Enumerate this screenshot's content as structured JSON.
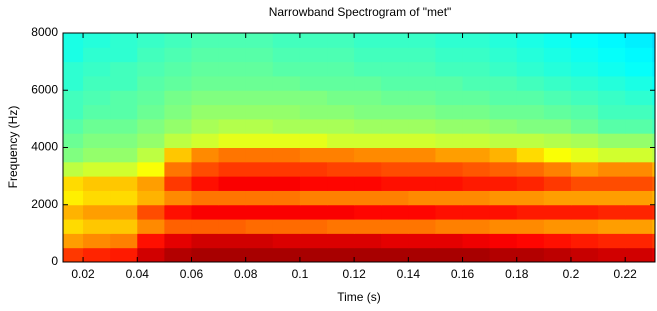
{
  "chart_data": {
    "type": "heatmap",
    "title": "Narrowband Spectrogram of \"met\"",
    "xlabel": "Time (s)",
    "ylabel": "Frequency (Hz)",
    "colormap": "jet",
    "zlim": [
      0,
      100
    ],
    "xbins": [
      0.0126,
      0.02,
      0.03,
      0.04,
      0.05,
      0.06,
      0.07,
      0.08,
      0.09,
      0.1,
      0.11,
      0.12,
      0.13,
      0.14,
      0.15,
      0.16,
      0.17,
      0.18,
      0.19,
      0.2,
      0.21,
      0.22,
      0.23,
      0.231
    ],
    "ybins": [
      0,
      500,
      1000,
      1500,
      2000,
      2500,
      3000,
      3500,
      4000,
      4500,
      5000,
      5500,
      6000,
      6500,
      7000,
      7500,
      8000
    ],
    "z": [
      [
        82,
        84,
        85,
        92,
        95,
        96,
        96,
        96,
        96,
        96,
        96,
        96,
        96,
        96,
        96,
        96,
        95,
        95,
        94,
        93,
        92,
        92,
        90
      ],
      [
        72,
        74,
        75,
        86,
        90,
        92,
        92,
        92,
        91,
        91,
        91,
        91,
        90,
        90,
        90,
        89,
        88,
        87,
        86,
        85,
        84,
        84,
        82
      ],
      [
        66,
        68,
        68,
        74,
        78,
        78,
        78,
        77,
        77,
        77,
        76,
        76,
        76,
        76,
        75,
        75,
        74,
        74,
        73,
        73,
        72,
        72,
        70
      ],
      [
        70,
        72,
        72,
        80,
        86,
        88,
        88,
        88,
        88,
        88,
        88,
        87,
        87,
        87,
        86,
        86,
        86,
        85,
        85,
        85,
        84,
        84,
        83
      ],
      [
        64,
        66,
        66,
        70,
        74,
        76,
        76,
        76,
        76,
        75,
        75,
        75,
        75,
        74,
        74,
        74,
        73,
        73,
        72,
        72,
        72,
        72,
        70
      ],
      [
        66,
        68,
        68,
        72,
        82,
        86,
        88,
        88,
        88,
        87,
        87,
        87,
        86,
        86,
        86,
        85,
        85,
        84,
        82,
        80,
        80,
        80,
        78
      ],
      [
        56,
        58,
        58,
        62,
        76,
        80,
        82,
        82,
        82,
        82,
        81,
        81,
        80,
        80,
        80,
        79,
        78,
        77,
        75,
        72,
        74,
        74,
        70
      ],
      [
        50,
        52,
        52,
        56,
        68,
        74,
        76,
        76,
        76,
        75,
        75,
        74,
        74,
        74,
        72,
        72,
        70,
        66,
        62,
        60,
        58,
        58,
        56
      ],
      [
        48,
        50,
        50,
        52,
        56,
        58,
        60,
        60,
        60,
        60,
        58,
        58,
        58,
        58,
        57,
        57,
        56,
        56,
        55,
        54,
        52,
        52,
        50
      ],
      [
        46,
        48,
        48,
        50,
        52,
        54,
        55,
        55,
        54,
        54,
        54,
        53,
        53,
        53,
        52,
        52,
        51,
        50,
        50,
        48,
        46,
        46,
        44
      ],
      [
        44,
        46,
        46,
        48,
        50,
        52,
        52,
        52,
        52,
        51,
        51,
        50,
        50,
        50,
        49,
        49,
        48,
        48,
        47,
        46,
        44,
        44,
        42
      ],
      [
        44,
        45,
        46,
        47,
        49,
        50,
        50,
        50,
        50,
        50,
        49,
        49,
        48,
        48,
        47,
        47,
        46,
        46,
        45,
        44,
        43,
        42,
        40
      ],
      [
        42,
        44,
        44,
        46,
        47,
        48,
        48,
        48,
        48,
        47,
        47,
        47,
        46,
        46,
        46,
        45,
        45,
        44,
        43,
        42,
        41,
        40,
        38
      ],
      [
        42,
        43,
        44,
        45,
        46,
        47,
        47,
        47,
        46,
        46,
        46,
        45,
        45,
        45,
        44,
        44,
        43,
        42,
        41,
        40,
        39,
        38,
        36
      ],
      [
        40,
        42,
        42,
        44,
        45,
        46,
        46,
        46,
        45,
        45,
        45,
        44,
        44,
        44,
        43,
        43,
        42,
        41,
        40,
        39,
        38,
        37,
        35
      ],
      [
        40,
        41,
        42,
        43,
        44,
        45,
        45,
        45,
        44,
        44,
        44,
        43,
        43,
        43,
        42,
        42,
        41,
        40,
        39,
        38,
        37,
        36,
        34
      ]
    ],
    "xlim": [
      0.0126,
      0.231
    ],
    "ylim": [
      0,
      8000
    ],
    "xticks": [
      0.02,
      0.04,
      0.06,
      0.08,
      0.1,
      0.12,
      0.14,
      0.16,
      0.18,
      0.2,
      0.22
    ],
    "yticks": [
      0,
      2000,
      4000,
      6000,
      8000
    ]
  }
}
